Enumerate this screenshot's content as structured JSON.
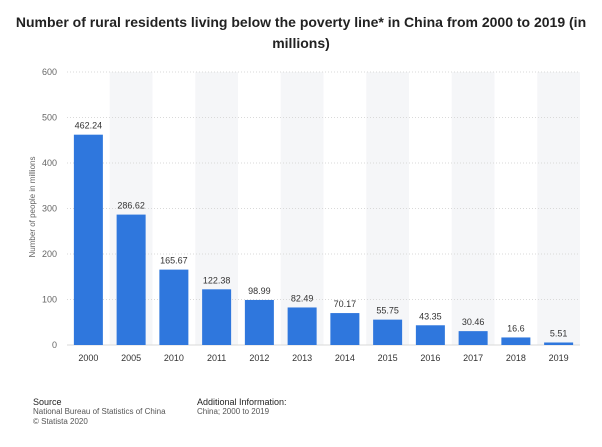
{
  "chart_data": {
    "type": "bar",
    "title": "Number of rural residents living below the poverty line* in China from 2000 to 2019 (in millions)",
    "xlabel": "",
    "ylabel": "Number of people in millions",
    "categories": [
      "2000",
      "2005",
      "2010",
      "2011",
      "2012",
      "2013",
      "2014",
      "2015",
      "2016",
      "2017",
      "2018",
      "2019"
    ],
    "values": [
      462.24,
      286.62,
      165.67,
      122.38,
      98.99,
      82.49,
      70.17,
      55.75,
      43.35,
      30.46,
      16.6,
      5.51
    ],
    "value_labels": [
      "462.24",
      "286.62",
      "165.67",
      "122.38",
      "98.99",
      "82.49",
      "70.17",
      "55.75",
      "43.35",
      "30.46",
      "16.6",
      "5.51"
    ],
    "ylim": [
      0,
      600
    ],
    "yticks": [
      "0",
      "100",
      "200",
      "300",
      "400",
      "500",
      "600"
    ],
    "grid": true,
    "bar_color": "#2f77dd",
    "band_color": "#f5f6f8"
  },
  "footer": {
    "source_heading": "Source",
    "source_lines": [
      "National Bureau of Statistics of China",
      "© Statista 2020"
    ],
    "info_heading": "Additional Information:",
    "info_lines": [
      "China; 2000 to 2019"
    ]
  }
}
